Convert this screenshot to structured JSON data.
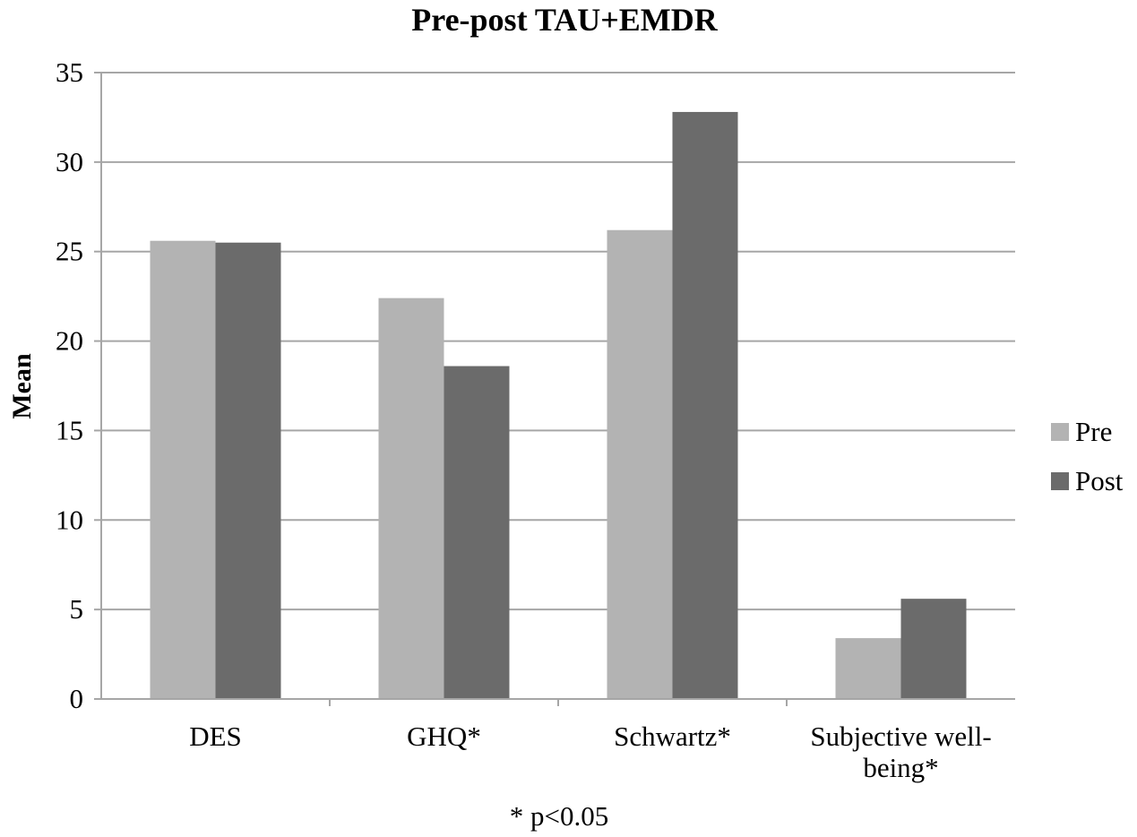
{
  "chart_data": {
    "type": "bar",
    "title": "Pre-post TAU+EMDR",
    "ylabel": "Mean",
    "xlabel": "",
    "ylim": [
      0,
      35
    ],
    "ytick_step": 5,
    "categories": [
      [
        "DES"
      ],
      [
        "GHQ*"
      ],
      [
        "Schwartz*"
      ],
      [
        "Subjective well-",
        "being*"
      ]
    ],
    "series": [
      {
        "name": "Pre",
        "color": "#b3b3b3",
        "values": [
          25.6,
          22.4,
          26.2,
          3.4
        ]
      },
      {
        "name": "Post",
        "color": "#6b6b6b",
        "values": [
          25.5,
          18.6,
          32.8,
          5.6
        ]
      }
    ],
    "grid": true,
    "legend_position": "right",
    "footnote": "* p<0.05"
  }
}
